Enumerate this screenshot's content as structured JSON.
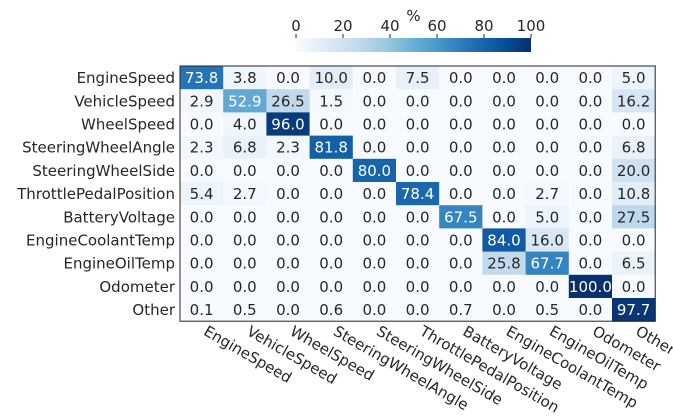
{
  "chart_data": {
    "type": "heatmap",
    "title": "",
    "xlabel": "",
    "ylabel": "",
    "rows": [
      "EngineSpeed",
      "VehicleSpeed",
      "WheelSpeed",
      "SteeringWheelAngle",
      "SteeringWheelSide",
      "ThrottlePedalPosition",
      "BatteryVoltage",
      "EngineCoolantTemp",
      "EngineOilTemp",
      "Odometer",
      "Other"
    ],
    "columns": [
      "EngineSpeed",
      "VehicleSpeed",
      "WheelSpeed",
      "SteeringWheelAngle",
      "SteeringWheelSide",
      "ThrottlePedalPosition",
      "BatteryVoltage",
      "EngineCoolantTemp",
      "EngineOilTemp",
      "Odometer",
      "Other"
    ],
    "values": [
      [
        73.8,
        3.8,
        0.0,
        10.0,
        0.0,
        7.5,
        0.0,
        0.0,
        0.0,
        0.0,
        5.0
      ],
      [
        2.9,
        52.9,
        26.5,
        1.5,
        0.0,
        0.0,
        0.0,
        0.0,
        0.0,
        0.0,
        16.2
      ],
      [
        0.0,
        4.0,
        96.0,
        0.0,
        0.0,
        0.0,
        0.0,
        0.0,
        0.0,
        0.0,
        0.0
      ],
      [
        2.3,
        6.8,
        2.3,
        81.8,
        0.0,
        0.0,
        0.0,
        0.0,
        0.0,
        0.0,
        6.8
      ],
      [
        0.0,
        0.0,
        0.0,
        0.0,
        80.0,
        0.0,
        0.0,
        0.0,
        0.0,
        0.0,
        20.0
      ],
      [
        5.4,
        2.7,
        0.0,
        0.0,
        0.0,
        78.4,
        0.0,
        0.0,
        2.7,
        0.0,
        10.8
      ],
      [
        0.0,
        0.0,
        0.0,
        0.0,
        0.0,
        0.0,
        67.5,
        0.0,
        5.0,
        0.0,
        27.5
      ],
      [
        0.0,
        0.0,
        0.0,
        0.0,
        0.0,
        0.0,
        0.0,
        84.0,
        16.0,
        0.0,
        0.0
      ],
      [
        0.0,
        0.0,
        0.0,
        0.0,
        0.0,
        0.0,
        0.0,
        25.8,
        67.7,
        0.0,
        6.5
      ],
      [
        0.0,
        0.0,
        0.0,
        0.0,
        0.0,
        0.0,
        0.0,
        0.0,
        0.0,
        100.0,
        0.0
      ],
      [
        0.1,
        0.5,
        0.0,
        0.6,
        0.0,
        0.0,
        0.7,
        0.0,
        0.5,
        0.0,
        97.7
      ]
    ],
    "colorbar": {
      "label": "%",
      "range": [
        0,
        100
      ],
      "ticks": [
        0,
        20,
        40,
        60,
        80,
        100
      ],
      "colormap": "Blues",
      "placement": "top"
    },
    "colors": {
      "low": "#f7fbff",
      "high": "#08306b",
      "dark_text": "#262626",
      "light_text": "#ffffff"
    }
  }
}
